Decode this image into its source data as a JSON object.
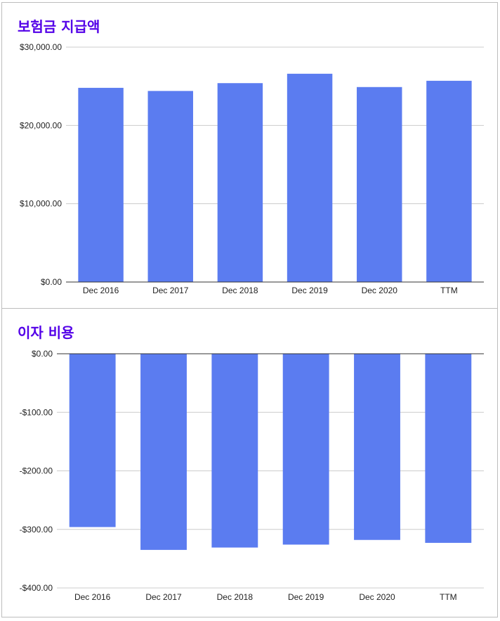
{
  "colors": {
    "bar": "#5b7cf0",
    "title": "#5300e8",
    "grid": "#cccccc",
    "axis": "#333333"
  },
  "chart_data": [
    {
      "type": "bar",
      "title": "보험금 지급액",
      "categories": [
        "Dec 2016",
        "Dec 2017",
        "Dec 2018",
        "Dec 2019",
        "Dec 2020",
        "TTM"
      ],
      "values": [
        24800,
        24400,
        25400,
        26600,
        24900,
        25700
      ],
      "ylim": [
        0,
        30000
      ],
      "yticks": [
        0,
        10000,
        20000,
        30000
      ],
      "ytick_labels": [
        "$0.00",
        "$10,000.00",
        "$20,000.00",
        "$30,000.00"
      ],
      "grid": true
    },
    {
      "type": "bar",
      "title": "이자 비용",
      "categories": [
        "Dec 2016",
        "Dec 2017",
        "Dec 2018",
        "Dec 2019",
        "Dec 2020",
        "TTM"
      ],
      "values": [
        -296,
        -335,
        -331,
        -326,
        -318,
        -323
      ],
      "ylim": [
        -400,
        0
      ],
      "yticks": [
        0,
        -100,
        -200,
        -300,
        -400
      ],
      "ytick_labels": [
        "$0.00",
        "-$100.00",
        "-$200.00",
        "-$300.00",
        "-$400.00"
      ],
      "grid": true
    }
  ]
}
